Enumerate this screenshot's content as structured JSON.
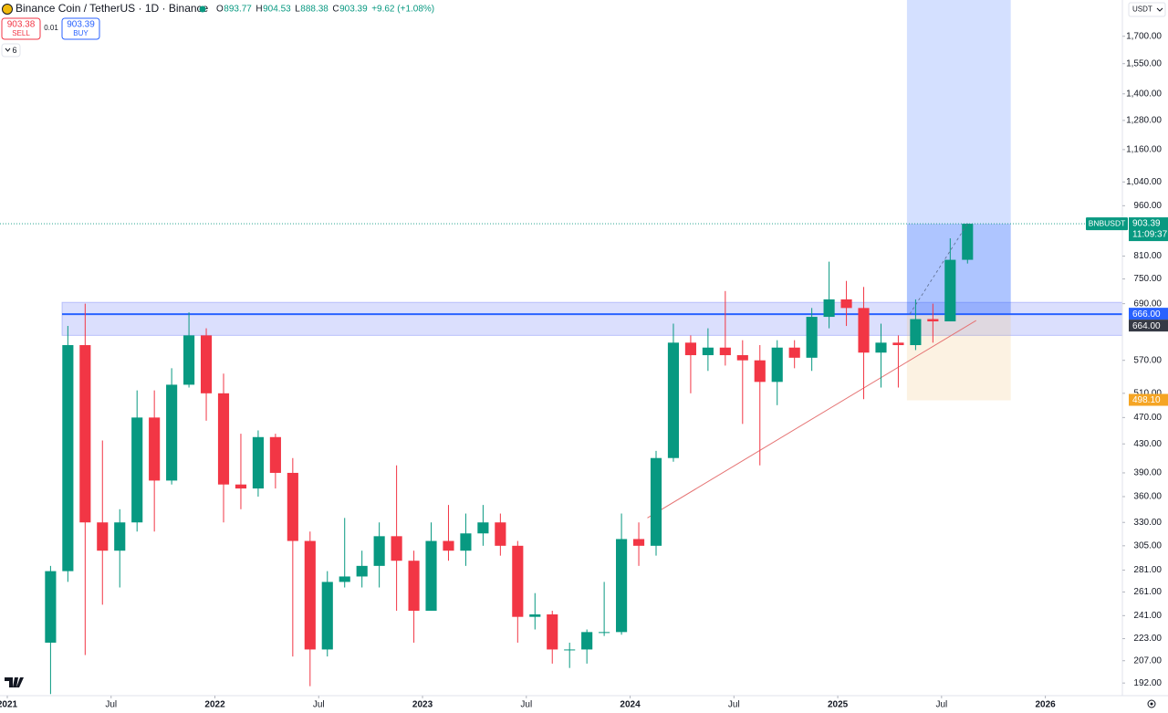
{
  "chart_data": {
    "type": "candlestick",
    "symbol": "Binance Coin / TetherUS · 1D · Binance",
    "legend_ohlc": [
      {
        "label": "O",
        "value": 893.77
      },
      {
        "label": "H",
        "value": 904.53
      },
      {
        "label": "L",
        "value": 888.38
      },
      {
        "label": "C",
        "value": 903.39
      }
    ],
    "change": "+9.62 (+1.08%)",
    "sell": {
      "price": 903.38,
      "label": "SELL"
    },
    "spread": 0.01,
    "buy": {
      "price": 903.39,
      "label": "BUY"
    },
    "indicators_count": 6,
    "currency": "USDT",
    "log_scale": true,
    "grid": false,
    "up_color": "#089981",
    "down_color": "#f23645",
    "x": [
      "2021-03",
      "2021-04",
      "2021-05",
      "2021-06",
      "2021-07",
      "2021-08",
      "2021-09",
      "2021-10",
      "2021-11",
      "2021-12",
      "2022-01",
      "2022-02",
      "2022-03",
      "2022-04",
      "2022-05",
      "2022-06",
      "2022-07",
      "2022-08",
      "2022-09",
      "2022-10",
      "2022-11",
      "2022-12",
      "2023-01",
      "2023-02",
      "2023-03",
      "2023-04",
      "2023-05",
      "2023-06",
      "2023-07",
      "2023-08",
      "2023-09",
      "2023-10",
      "2023-11",
      "2023-12",
      "2024-01",
      "2024-02",
      "2024-03",
      "2024-04",
      "2024-05",
      "2024-06",
      "2024-07",
      "2024-08",
      "2024-09",
      "2024-10",
      "2024-11",
      "2024-12",
      "2025-01",
      "2025-02",
      "2025-03",
      "2025-04",
      "2025-05",
      "2025-06",
      "2025-07",
      "2025-08"
    ],
    "open": [
      220,
      280,
      600,
      330,
      300,
      330,
      470,
      380,
      525,
      620,
      510,
      375,
      370,
      440,
      390,
      310,
      215,
      270,
      275,
      285,
      315,
      290,
      245,
      310,
      300,
      318,
      330,
      305,
      240,
      242,
      215,
      215,
      228,
      228,
      312,
      305,
      410,
      605,
      580,
      595,
      580,
      570,
      530,
      595,
      575,
      660,
      700,
      680,
      585,
      605,
      600,
      655,
      650,
      800
    ],
    "high": [
      285,
      640,
      690,
      435,
      345,
      515,
      515,
      555,
      670,
      635,
      545,
      445,
      450,
      445,
      410,
      320,
      280,
      335,
      300,
      330,
      400,
      300,
      330,
      350,
      340,
      350,
      340,
      310,
      260,
      245,
      220,
      230,
      270,
      340,
      330,
      420,
      645,
      620,
      635,
      720,
      610,
      600,
      610,
      610,
      680,
      795,
      745,
      730,
      645,
      620,
      700,
      690,
      860,
      904.53
    ],
    "low": [
      185,
      270,
      211,
      250,
      265,
      320,
      320,
      375,
      520,
      465,
      330,
      345,
      360,
      370,
      210,
      190,
      210,
      265,
      265,
      265,
      245,
      220,
      245,
      290,
      285,
      305,
      295,
      220,
      230,
      205,
      202,
      205,
      225,
      226,
      285,
      295,
      405,
      510,
      550,
      560,
      460,
      400,
      490,
      555,
      550,
      635,
      640,
      500,
      520,
      520,
      590,
      605,
      650,
      790
    ],
    "close": [
      280,
      600,
      330,
      300,
      330,
      470,
      380,
      525,
      620,
      510,
      375,
      370,
      440,
      390,
      310,
      215,
      270,
      275,
      285,
      315,
      290,
      245,
      310,
      300,
      318,
      330,
      305,
      240,
      242,
      215,
      215,
      228,
      228,
      312,
      305,
      410,
      605,
      580,
      595,
      580,
      570,
      530,
      595,
      575,
      660,
      700,
      680,
      585,
      605,
      600,
      655,
      650,
      800,
      903.39
    ],
    "xlim": [
      "2020-12",
      "2026-05"
    ],
    "xticks": [
      {
        "value": "2021-01",
        "label": "2021"
      },
      {
        "value": "2021-07",
        "label": "Jul"
      },
      {
        "value": "2022-01",
        "label": "2022"
      },
      {
        "value": "2022-07",
        "label": "Jul"
      },
      {
        "value": "2023-01",
        "label": "2023"
      },
      {
        "value": "2023-07",
        "label": "Jul"
      },
      {
        "value": "2024-01",
        "label": "2024"
      },
      {
        "value": "2024-07",
        "label": "Jul"
      },
      {
        "value": "2025-01",
        "label": "2025"
      },
      {
        "value": "2025-07",
        "label": "Jul"
      },
      {
        "value": "2026-01",
        "label": "2026"
      }
    ],
    "ylim": [
      184,
      1921
    ],
    "yticks": [
      {
        "value": 1700,
        "label": "1,700.00"
      },
      {
        "value": 1550,
        "label": "1,550.00"
      },
      {
        "value": 1400,
        "label": "1,400.00"
      },
      {
        "value": 1280,
        "label": "1,280.00"
      },
      {
        "value": 1160,
        "label": "1,160.00"
      },
      {
        "value": 1040,
        "label": "1,040.00"
      },
      {
        "value": 960,
        "label": "960.00"
      },
      {
        "value": 810,
        "label": "810.00"
      },
      {
        "value": 750,
        "label": "750.00"
      },
      {
        "value": 690,
        "label": "690.00"
      },
      {
        "value": 570,
        "label": "570.00"
      },
      {
        "value": 510,
        "label": "510.00"
      },
      {
        "value": 470,
        "label": "470.00"
      },
      {
        "value": 430,
        "label": "430.00"
      },
      {
        "value": 390,
        "label": "390.00"
      },
      {
        "value": 360,
        "label": "360.00"
      },
      {
        "value": 330,
        "label": "330.00"
      },
      {
        "value": 305,
        "label": "305.00"
      },
      {
        "value": 281,
        "label": "281.00"
      },
      {
        "value": 261,
        "label": "261.00"
      },
      {
        "value": 241,
        "label": "241.00"
      },
      {
        "value": 223,
        "label": "223.00"
      },
      {
        "value": 207,
        "label": "207.00"
      },
      {
        "value": 192,
        "label": "192.00"
      }
    ],
    "last_price": {
      "value": 903.39,
      "label": "903.39",
      "symbol": "BNBUSDT",
      "countdown": "11:09:37"
    },
    "resistance_zone": [
      620,
      693
    ],
    "levels": [
      {
        "value": 666,
        "label": "666.00",
        "color": "#2962ff"
      },
      {
        "value": 664,
        "label": "664.00",
        "color": "#363a45"
      }
    ],
    "position": {
      "start": "2025-05",
      "end": "2025-11",
      "entry": {
        "value": 666,
        "label": "666.00"
      },
      "stop": {
        "value": 498.1,
        "label": "498.10"
      }
    },
    "trendline": {
      "x": [
        "2024-02",
        "2025-09"
      ],
      "values": [
        335,
        652
      ],
      "color": "#e57373"
    }
  }
}
